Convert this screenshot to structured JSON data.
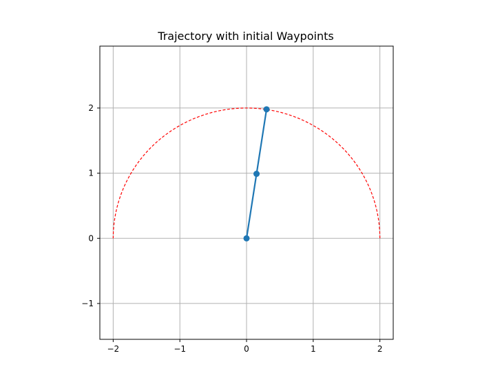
{
  "chart_data": {
    "type": "line",
    "title": "Trajectory with initial Waypoints",
    "xlabel": "",
    "ylabel": "",
    "xlim": [
      -2.2,
      2.2
    ],
    "ylim": [
      -1.55,
      2.95
    ],
    "grid": true,
    "x_ticks": [
      -2,
      -1,
      0,
      1,
      2
    ],
    "x_tick_labels": [
      "−2",
      "−1",
      "0",
      "1",
      "2"
    ],
    "y_ticks": [
      -1,
      0,
      1,
      2
    ],
    "y_tick_labels": [
      "−1",
      "0",
      "1",
      "2"
    ],
    "series": [
      {
        "style": "solid-line-with-circle-markers",
        "color": "#1f77b4",
        "x": [
          0,
          0.15,
          0.3
        ],
        "y": [
          0,
          0.99,
          1.98
        ]
      }
    ],
    "annotations": [
      {
        "type": "dashed-semicircle",
        "color": "#ff0000",
        "center": [
          0,
          0
        ],
        "radius": 2,
        "angle_range_deg": [
          0,
          180
        ]
      }
    ]
  }
}
